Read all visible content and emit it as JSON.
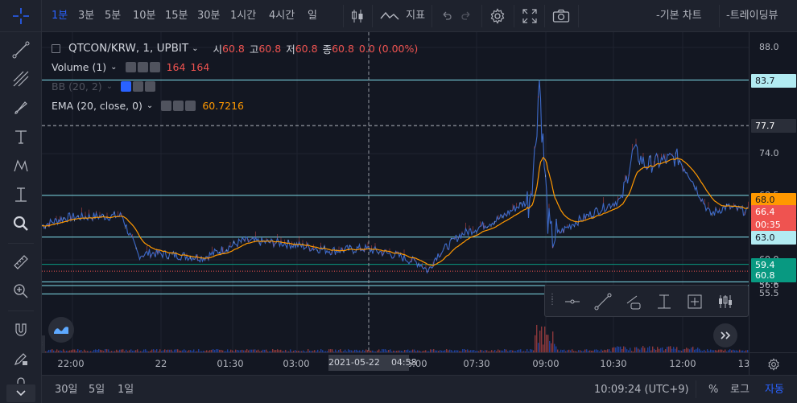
{
  "toolbar": {
    "intervals": [
      "1분",
      "3분",
      "5분",
      "10분",
      "15분",
      "30분",
      "1시간",
      "4시간",
      "일"
    ],
    "active_interval": "1분",
    "indicator_label": "지표",
    "basic_chart_label": "-기본 차트",
    "tradingview_label": "-트레이딩뷰"
  },
  "legend": {
    "symbol": "QTCON/KRW, 1, UPBIT",
    "open_label": "시",
    "open": "60.8",
    "high_label": "고",
    "high": "60.8",
    "low_label": "저",
    "low": "60.8",
    "close_label": "종",
    "close": "60.8",
    "change": "0.0 (0.00%)",
    "volume_name": "Volume (1)",
    "volume_v1": "164",
    "volume_v2": "164",
    "bb_name": "BB (20, 2)",
    "ema_name": "EMA (20, close, 0)",
    "ema_value": "60.7216"
  },
  "price_scale": {
    "ticks": [
      "88.0",
      "74.0",
      "68.5",
      "63.0",
      "60.0",
      "57.1",
      "56.6",
      "55.5"
    ],
    "labels": [
      {
        "text": "83.7",
        "bg": "#b2ebf2",
        "fg": "#131722"
      },
      {
        "text": "77.7",
        "bg": "#2a2e39",
        "fg": "#ffffff"
      },
      {
        "text": "68.0",
        "bg": "#ff9800",
        "fg": "#131722"
      },
      {
        "text": "66.4",
        "bg": "#ef5350",
        "fg": "#ffffff"
      },
      {
        "text": "00:35",
        "bg": "#ef5350",
        "fg": "#ffffff"
      },
      {
        "text": "63.0",
        "bg": "#b2ebf2",
        "fg": "#131722"
      },
      {
        "text": "59.4",
        "bg": "#089981",
        "fg": "#ffffff"
      },
      {
        "text": "60.8",
        "bg": "#089981",
        "fg": "#ffffff"
      }
    ]
  },
  "time_scale": {
    "ticks": [
      "22:00",
      "22",
      "01:30",
      "03:00",
      "04:30",
      "06:00",
      "07:30",
      "09:00",
      "10:30",
      "12:00",
      "13"
    ],
    "crosshair_date": "2021-05-22",
    "crosshair_time": "04:58"
  },
  "bottom": {
    "ranges": [
      "30일",
      "5일",
      "1일"
    ],
    "clock": "10:09:24 (UTC+9)",
    "percent_label": "%",
    "log_label": "로그",
    "auto_label": "자동"
  },
  "colors": {
    "bg": "#131722",
    "panel": "#1e222d",
    "up": "#26a69a",
    "down": "#ef5350",
    "accent": "#2962ff",
    "ema": "#ff9800",
    "hline": "#80deea"
  }
}
